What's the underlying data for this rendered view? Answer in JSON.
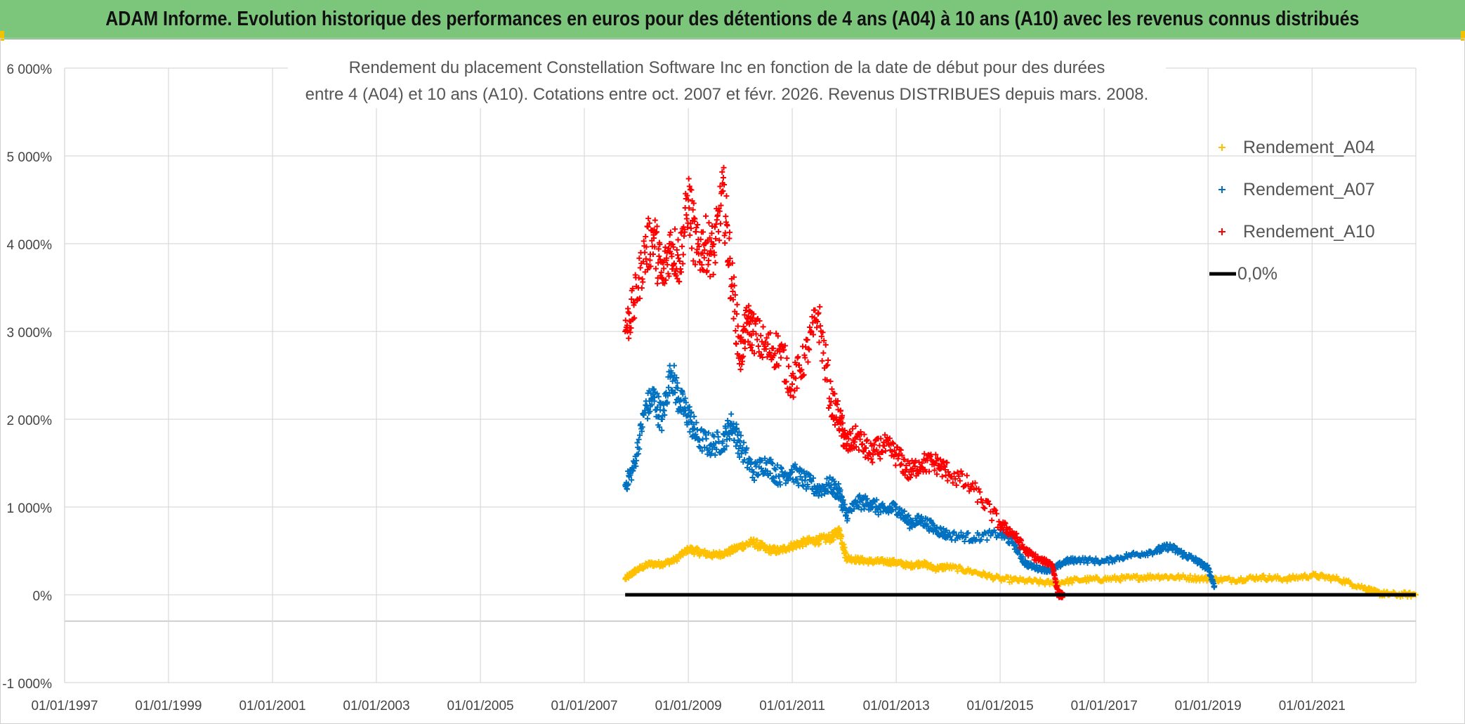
{
  "banner": {
    "title": "ADAM Informe. Evolution historique des performances en euros pour des détentions de 4 ans (A04) à 10 ans (A10) avec les revenus connus distribués"
  },
  "colors": {
    "banner_bg": "#7cc67c",
    "A04": "#ffc000",
    "A07": "#0070c0",
    "A10": "#ff0000",
    "zero": "#000000"
  },
  "chart_data": {
    "type": "scatter",
    "title_line1": "Rendement du placement Constellation Software Inc en fonction de la date de début pour des durées",
    "title_line2": "entre 4 (A04) et 10 ans (A10). Cotations entre oct. 2007 et févr. 2026. Revenus DISTRIBUES depuis mars. 2008.",
    "xlabel": "",
    "ylabel": "",
    "x_range": [
      "1997-01-01",
      "2022-12-31"
    ],
    "ylim": [
      -1000,
      6000
    ],
    "y_ticks": [
      -1000,
      0,
      1000,
      2000,
      3000,
      4000,
      5000,
      6000
    ],
    "y_tick_labels": [
      "-1 000%",
      "0%",
      "1 000%",
      "2 000%",
      "3 000%",
      "4 000%",
      "5 000%",
      "6 000%"
    ],
    "x_ticks": [
      "1997-01-01",
      "1999-01-01",
      "2001-01-01",
      "2003-01-01",
      "2005-01-01",
      "2007-01-01",
      "2009-01-01",
      "2011-01-01",
      "2013-01-01",
      "2015-01-01",
      "2017-01-01",
      "2019-01-01",
      "2021-01-01"
    ],
    "x_tick_labels": [
      "01/01/1997",
      "01/01/1999",
      "01/01/2001",
      "01/01/2003",
      "01/01/2005",
      "01/01/2007",
      "01/01/2009",
      "01/01/2011",
      "01/01/2013",
      "01/01/2015",
      "01/01/2017",
      "01/01/2019",
      "01/01/2021"
    ],
    "grid": true,
    "legend_position": "top-right",
    "series": [
      {
        "name": "Rendement_A04",
        "marker": "+",
        "x": [
          "2007-10-15",
          "2008-01-01",
          "2008-04-01",
          "2008-07-01",
          "2008-10-01",
          "2009-01-01",
          "2009-04-01",
          "2009-07-01",
          "2009-10-01",
          "2010-01-01",
          "2010-04-01",
          "2010-07-01",
          "2010-10-01",
          "2011-01-01",
          "2011-04-01",
          "2011-07-01",
          "2011-10-01",
          "2011-12-01",
          "2012-01-15",
          "2012-04-01",
          "2012-07-01",
          "2012-10-01",
          "2013-01-01",
          "2013-04-01",
          "2013-07-01",
          "2013-10-01",
          "2014-01-01",
          "2014-07-01",
          "2015-01-01",
          "2015-07-01",
          "2016-01-01",
          "2016-07-01",
          "2017-01-01",
          "2017-07-01",
          "2018-01-01",
          "2018-07-01",
          "2019-01-01",
          "2019-07-01",
          "2020-01-01",
          "2020-07-01",
          "2021-01-01",
          "2021-07-01",
          "2022-01-01",
          "2022-04-01",
          "2022-07-01",
          "2022-12-31"
        ],
        "values": [
          180,
          280,
          350,
          350,
          400,
          520,
          480,
          450,
          480,
          550,
          600,
          520,
          500,
          560,
          600,
          620,
          650,
          730,
          420,
          400,
          380,
          380,
          370,
          330,
          360,
          300,
          320,
          260,
          180,
          160,
          130,
          170,
          180,
          190,
          210,
          200,
          180,
          170,
          200,
          180,
          220,
          180,
          80,
          20,
          5,
          0
        ]
      },
      {
        "name": "Rendement_A07",
        "marker": "+",
        "x": [
          "2007-10-15",
          "2007-12-15",
          "2008-03-01",
          "2008-05-01",
          "2008-07-01",
          "2008-09-01",
          "2008-11-01",
          "2009-01-01",
          "2009-03-01",
          "2009-06-01",
          "2009-09-01",
          "2009-11-01",
          "2010-01-01",
          "2010-04-01",
          "2010-07-01",
          "2010-10-01",
          "2011-01-01",
          "2011-04-01",
          "2011-07-01",
          "2011-10-01",
          "2011-12-01",
          "2012-01-15",
          "2012-04-01",
          "2012-07-01",
          "2012-10-01",
          "2013-01-01",
          "2013-04-01",
          "2013-07-01",
          "2013-10-01",
          "2014-01-01",
          "2014-07-01",
          "2015-01-01",
          "2015-04-01",
          "2015-07-01",
          "2015-10-01",
          "2016-01-01",
          "2016-04-01",
          "2016-07-01",
          "2017-01-01",
          "2017-07-01",
          "2018-01-01",
          "2018-04-01",
          "2018-07-01",
          "2018-10-01",
          "2019-01-01",
          "2019-02-15"
        ],
        "values": [
          1250,
          1450,
          2100,
          2250,
          2000,
          2550,
          2200,
          2050,
          1800,
          1700,
          1750,
          1950,
          1700,
          1400,
          1500,
          1350,
          1400,
          1300,
          1200,
          1250,
          1150,
          900,
          1050,
          1050,
          950,
          1000,
          820,
          850,
          750,
          680,
          650,
          700,
          600,
          350,
          300,
          280,
          380,
          400,
          380,
          450,
          500,
          550,
          470,
          400,
          300,
          100
        ]
      },
      {
        "name": "Rendement_A10",
        "marker": "+",
        "x": [
          "2007-10-15",
          "2007-12-15",
          "2008-03-01",
          "2008-05-01",
          "2008-07-01",
          "2008-09-01",
          "2008-11-01",
          "2009-01-01",
          "2009-03-01",
          "2009-05-01",
          "2009-07-01",
          "2009-09-01",
          "2009-11-01",
          "2010-01-01",
          "2010-02-15",
          "2010-04-01",
          "2010-07-01",
          "2010-10-01",
          "2011-01-01",
          "2011-04-01",
          "2011-07-01",
          "2011-10-01",
          "2011-12-01",
          "2012-01-15",
          "2012-04-01",
          "2012-07-01",
          "2012-10-01",
          "2013-01-01",
          "2013-04-01",
          "2013-07-01",
          "2013-10-01",
          "2014-01-01",
          "2014-07-01",
          "2015-01-01",
          "2015-04-01",
          "2015-07-01",
          "2015-10-01",
          "2016-01-01",
          "2016-02-15",
          "2016-03-15"
        ],
        "values": [
          3000,
          3300,
          3900,
          4100,
          3600,
          4000,
          3800,
          4500,
          3900,
          4000,
          3900,
          4600,
          3600,
          2700,
          3100,
          3000,
          2800,
          2800,
          2400,
          2700,
          3200,
          2200,
          2000,
          1700,
          1800,
          1600,
          1700,
          1600,
          1400,
          1500,
          1500,
          1400,
          1200,
          800,
          700,
          500,
          400,
          350,
          0,
          0
        ]
      },
      {
        "name": "0,0%",
        "marker": "line",
        "x": [
          "2007-10-15",
          "2022-12-31"
        ],
        "values": [
          0,
          0
        ]
      }
    ]
  }
}
